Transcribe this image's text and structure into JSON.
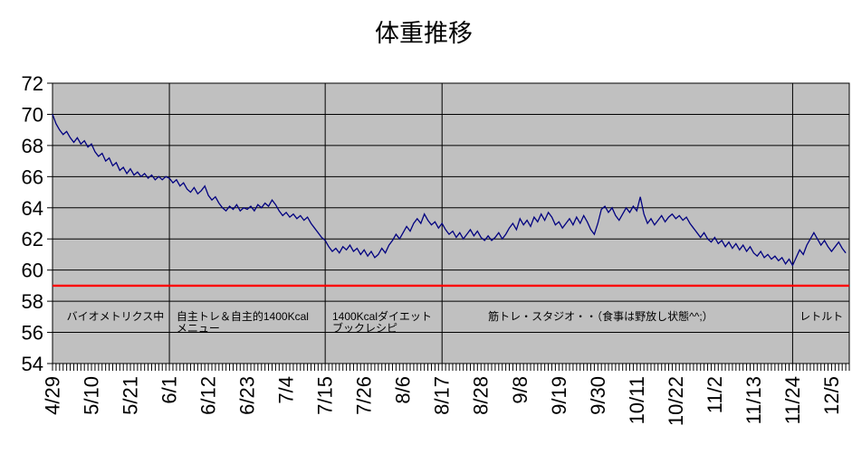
{
  "title": "体重推移",
  "colors": {
    "page_bg": "#ffffff",
    "plot_bg": "#c0c0c0",
    "gridline": "#000000",
    "series": "#000080",
    "target_line": "#ff0000",
    "text": "#000000"
  },
  "chart_data": {
    "type": "line",
    "title": "体重推移",
    "ylabel": "",
    "xlabel": "",
    "ylim": [
      54,
      72
    ],
    "yticks": [
      54,
      56,
      58,
      60,
      62,
      64,
      66,
      68,
      70,
      72
    ],
    "grid": "horizontal",
    "legend": "none",
    "total_days": 225,
    "xtick_interval_days": 11,
    "xtick_labels": [
      "4/29",
      "5/10",
      "5/21",
      "6/1",
      "6/12",
      "6/23",
      "7/4",
      "7/15",
      "7/26",
      "8/6",
      "8/17",
      "8/28",
      "9/8",
      "9/19",
      "9/30",
      "10/11",
      "10/22",
      "11/2",
      "11/13",
      "11/24",
      "12/5"
    ],
    "target_value": 59,
    "phase_lines_days": [
      33,
      77,
      110,
      209
    ],
    "annotations": [
      {
        "day": 4,
        "lines": [
          "バイオメトリクス中"
        ]
      },
      {
        "day": 35,
        "lines": [
          "自主トレ＆自主的1400Kcal",
          "メニュー"
        ]
      },
      {
        "day": 79,
        "lines": [
          "1400Kcalダイエット",
          "ブックレシピ"
        ]
      },
      {
        "day": 123,
        "lines": [
          "筋トレ・スタジオ・・（食事は野放し状態^^;）"
        ]
      },
      {
        "day": 211,
        "lines": [
          "レトルト"
        ]
      }
    ],
    "series": [
      {
        "name": "weight",
        "values": [
          70.0,
          69.4,
          69.0,
          68.7,
          68.9,
          68.5,
          68.2,
          68.5,
          68.1,
          68.3,
          67.9,
          68.1,
          67.6,
          67.3,
          67.5,
          67.0,
          67.2,
          66.7,
          66.9,
          66.4,
          66.6,
          66.2,
          66.5,
          66.1,
          66.3,
          66.0,
          66.2,
          65.9,
          66.1,
          65.8,
          66.0,
          65.8,
          66.0,
          65.9,
          65.6,
          65.8,
          65.4,
          65.6,
          65.2,
          65.0,
          65.3,
          64.9,
          65.1,
          65.4,
          64.8,
          64.5,
          64.7,
          64.3,
          64.0,
          63.8,
          64.1,
          63.9,
          64.2,
          63.8,
          64.0,
          63.9,
          64.1,
          63.8,
          64.2,
          64.0,
          64.3,
          64.1,
          64.5,
          64.2,
          63.8,
          63.5,
          63.7,
          63.4,
          63.6,
          63.3,
          63.5,
          63.2,
          63.4,
          63.0,
          62.7,
          62.4,
          62.1,
          61.9,
          61.5,
          61.2,
          61.4,
          61.1,
          61.5,
          61.3,
          61.6,
          61.2,
          61.4,
          61.0,
          61.3,
          60.9,
          61.2,
          60.8,
          61.0,
          61.4,
          61.1,
          61.6,
          61.9,
          62.3,
          62.0,
          62.4,
          62.8,
          62.5,
          63.0,
          63.3,
          63.0,
          63.6,
          63.2,
          62.9,
          63.1,
          62.7,
          63.0,
          62.6,
          62.3,
          62.5,
          62.1,
          62.4,
          62.0,
          62.3,
          62.6,
          62.2,
          62.5,
          62.1,
          61.9,
          62.2,
          61.9,
          62.1,
          62.4,
          62.0,
          62.3,
          62.7,
          63.0,
          62.6,
          63.3,
          62.9,
          63.2,
          62.8,
          63.4,
          63.1,
          63.6,
          63.2,
          63.7,
          63.4,
          62.9,
          63.1,
          62.7,
          63.0,
          63.3,
          62.9,
          63.4,
          63.0,
          63.5,
          63.1,
          62.6,
          62.3,
          63.0,
          63.9,
          64.1,
          63.7,
          64.0,
          63.5,
          63.2,
          63.6,
          64.0,
          63.7,
          64.1,
          63.8,
          64.7,
          63.6,
          63.0,
          63.3,
          62.9,
          63.2,
          63.5,
          63.1,
          63.4,
          63.6,
          63.3,
          63.5,
          63.2,
          63.4,
          63.0,
          62.7,
          62.4,
          62.1,
          62.4,
          62.0,
          61.8,
          62.1,
          61.7,
          61.9,
          61.5,
          61.8,
          61.4,
          61.7,
          61.3,
          61.6,
          61.2,
          61.5,
          61.1,
          60.9,
          61.2,
          60.8,
          61.0,
          60.7,
          60.9,
          60.6,
          60.8,
          60.4,
          60.7,
          60.3,
          60.8,
          61.3,
          61.0,
          61.6,
          62.0,
          62.4,
          62.0,
          61.6,
          61.9,
          61.5,
          61.2,
          61.5,
          61.8,
          61.4,
          61.1
        ]
      }
    ]
  }
}
